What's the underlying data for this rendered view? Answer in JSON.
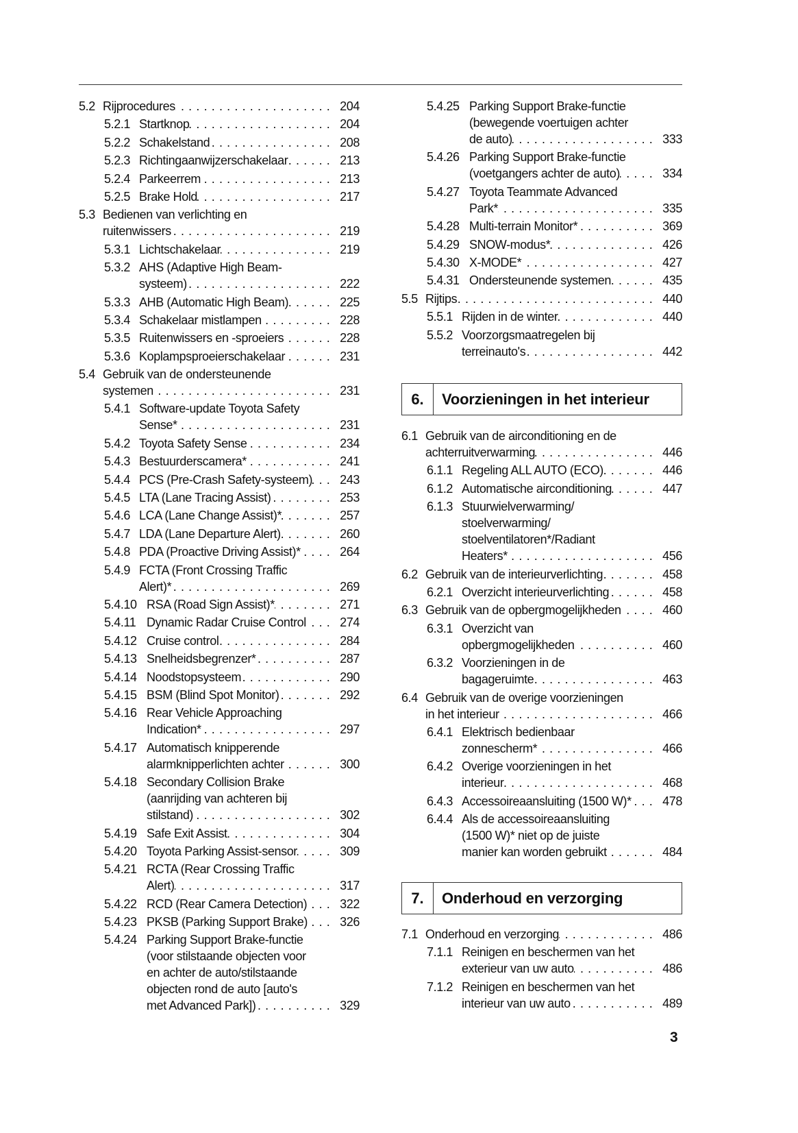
{
  "left_column": [
    {
      "num": "5.2",
      "level": 1,
      "lines": [
        "Rijprocedures"
      ],
      "page": "204"
    },
    {
      "num": "5.2.1",
      "level": 2,
      "lines": [
        "Startknop"
      ],
      "page": "204"
    },
    {
      "num": "5.2.2",
      "level": 2,
      "lines": [
        "Schakelstand"
      ],
      "page": "208"
    },
    {
      "num": "5.2.3",
      "level": 2,
      "lines": [
        "Richtingaanwijzerschakelaar"
      ],
      "page": "213"
    },
    {
      "num": "5.2.4",
      "level": 2,
      "lines": [
        "Parkeerrem"
      ],
      "page": "213"
    },
    {
      "num": "5.2.5",
      "level": 2,
      "lines": [
        "Brake Hold"
      ],
      "page": "217"
    },
    {
      "num": "5.3",
      "level": 1,
      "lines": [
        "Bedienen van verlichting en",
        "ruitenwissers"
      ],
      "page": "219"
    },
    {
      "num": "5.3.1",
      "level": 2,
      "lines": [
        "Lichtschakelaar"
      ],
      "page": "219"
    },
    {
      "num": "5.3.2",
      "level": 2,
      "lines": [
        "AHS (Adaptive High Beam-",
        "systeem)"
      ],
      "page": "222"
    },
    {
      "num": "5.3.3",
      "level": 2,
      "lines": [
        "AHB (Automatic High Beam)"
      ],
      "page": "225"
    },
    {
      "num": "5.3.4",
      "level": 2,
      "lines": [
        "Schakelaar mistlampen"
      ],
      "page": "228"
    },
    {
      "num": "5.3.5",
      "level": 2,
      "lines": [
        "Ruitenwissers en -sproeiers"
      ],
      "page": "228"
    },
    {
      "num": "5.3.6",
      "level": 2,
      "lines": [
        "Koplampsproeierschakelaar"
      ],
      "page": "231"
    },
    {
      "num": "5.4",
      "level": 1,
      "lines": [
        "Gebruik van de ondersteunende",
        "systemen"
      ],
      "page": "231"
    },
    {
      "num": "5.4.1",
      "level": 2,
      "lines": [
        "Software-update Toyota Safety",
        "Sense*"
      ],
      "page": "231"
    },
    {
      "num": "5.4.2",
      "level": 2,
      "lines": [
        "Toyota Safety Sense"
      ],
      "page": "234"
    },
    {
      "num": "5.4.3",
      "level": 2,
      "lines": [
        "Bestuurderscamera*"
      ],
      "page": "241"
    },
    {
      "num": "5.4.4",
      "level": 2,
      "lines": [
        "PCS (Pre-Crash Safety-systeem)"
      ],
      "page": "243"
    },
    {
      "num": "5.4.5",
      "level": 2,
      "lines": [
        "LTA (Lane Tracing Assist)"
      ],
      "page": "253"
    },
    {
      "num": "5.4.6",
      "level": 2,
      "lines": [
        "LCA (Lane Change Assist)*"
      ],
      "page": "257"
    },
    {
      "num": "5.4.7",
      "level": 2,
      "lines": [
        "LDA (Lane Departure Alert)"
      ],
      "page": "260"
    },
    {
      "num": "5.4.8",
      "level": 2,
      "lines": [
        "PDA (Proactive Driving Assist)*"
      ],
      "page": "264"
    },
    {
      "num": "5.4.9",
      "level": 2,
      "lines": [
        "FCTA (Front Crossing Traffic",
        "Alert)*"
      ],
      "page": "269"
    },
    {
      "num": "5.4.10",
      "level": 2,
      "lines": [
        "RSA (Road Sign Assist)*"
      ],
      "page": "271"
    },
    {
      "num": "5.4.11",
      "level": 2,
      "lines": [
        "Dynamic Radar Cruise Control"
      ],
      "page": "274"
    },
    {
      "num": "5.4.12",
      "level": 2,
      "lines": [
        "Cruise control"
      ],
      "page": "284"
    },
    {
      "num": "5.4.13",
      "level": 2,
      "lines": [
        "Snelheidsbegrenzer*"
      ],
      "page": "287"
    },
    {
      "num": "5.4.14",
      "level": 2,
      "lines": [
        "Noodstopsysteem"
      ],
      "page": "290"
    },
    {
      "num": "5.4.15",
      "level": 2,
      "lines": [
        "BSM (Blind Spot Monitor)"
      ],
      "page": "292"
    },
    {
      "num": "5.4.16",
      "level": 2,
      "lines": [
        "Rear Vehicle Approaching",
        "Indication*"
      ],
      "page": "297"
    },
    {
      "num": "5.4.17",
      "level": 2,
      "lines": [
        "Automatisch knipperende",
        "alarmknipperlichten achter"
      ],
      "page": "300"
    },
    {
      "num": "5.4.18",
      "level": 2,
      "lines": [
        "Secondary Collision Brake",
        "(aanrijding van achteren bij",
        "stilstand)"
      ],
      "page": "302"
    },
    {
      "num": "5.4.19",
      "level": 2,
      "lines": [
        "Safe Exit Assist"
      ],
      "page": "304"
    },
    {
      "num": "5.4.20",
      "level": 2,
      "lines": [
        "Toyota Parking Assist-sensor"
      ],
      "page": "309"
    },
    {
      "num": "5.4.21",
      "level": 2,
      "lines": [
        "RCTA (Rear Crossing Traffic",
        "Alert)"
      ],
      "page": "317"
    },
    {
      "num": "5.4.22",
      "level": 2,
      "lines": [
        "RCD (Rear Camera Detection)"
      ],
      "page": "322"
    },
    {
      "num": "5.4.23",
      "level": 2,
      "lines": [
        "PKSB (Parking Support Brake)"
      ],
      "page": "326"
    },
    {
      "num": "5.4.24",
      "level": 2,
      "lines": [
        "Parking Support Brake-functie",
        "(voor stilstaande objecten voor",
        "en achter de auto/stilstaande",
        "objecten rond de auto [auto's",
        "met Advanced Park])"
      ],
      "page": "329"
    }
  ],
  "right_column": [
    {
      "num": "5.4.25",
      "level": 2,
      "lines": [
        "Parking Support Brake-functie",
        "(bewegende voertuigen achter",
        "de auto)"
      ],
      "page": "333"
    },
    {
      "num": "5.4.26",
      "level": 2,
      "lines": [
        "Parking Support Brake-functie",
        "(voetgangers achter de auto)"
      ],
      "page": "334"
    },
    {
      "num": "5.4.27",
      "level": 2,
      "lines": [
        "Toyota Teammate Advanced",
        "Park*"
      ],
      "page": "335"
    },
    {
      "num": "5.4.28",
      "level": 2,
      "lines": [
        "Multi-terrain Monitor*"
      ],
      "page": "369"
    },
    {
      "num": "5.4.29",
      "level": 2,
      "lines": [
        "SNOW-modus*"
      ],
      "page": "426"
    },
    {
      "num": "5.4.30",
      "level": 2,
      "lines": [
        "X-MODE*"
      ],
      "page": "427"
    },
    {
      "num": "5.4.31",
      "level": 2,
      "lines": [
        "Ondersteunende systemen"
      ],
      "page": "435"
    },
    {
      "num": "5.5",
      "level": 1,
      "lines": [
        "Rijtips"
      ],
      "page": "440"
    },
    {
      "num": "5.5.1",
      "level": 2,
      "lines": [
        "Rijden in de winter"
      ],
      "page": "440"
    },
    {
      "num": "5.5.2",
      "level": 2,
      "lines": [
        "Voorzorgsmaatregelen bij",
        "terreinauto's"
      ],
      "page": "442"
    }
  ],
  "chapter6": {
    "number": "6.",
    "title": "Voorzieningen in het interieur",
    "entries": [
      {
        "num": "6.1",
        "level": 1,
        "lines": [
          "Gebruik van de airconditioning en de",
          "achterruitverwarming"
        ],
        "page": "446"
      },
      {
        "num": "6.1.1",
        "level": 2,
        "lines": [
          "Regeling ALL AUTO (ECO)"
        ],
        "page": "446"
      },
      {
        "num": "6.1.2",
        "level": 2,
        "lines": [
          "Automatische airconditioning"
        ],
        "page": "447"
      },
      {
        "num": "6.1.3",
        "level": 2,
        "lines": [
          "Stuurwielverwarming/",
          "stoelverwarming/",
          "stoelventilatoren*/Radiant",
          "Heaters*"
        ],
        "page": "456"
      },
      {
        "num": "6.2",
        "level": 1,
        "lines": [
          "Gebruik van de interieurverlichting"
        ],
        "page": "458"
      },
      {
        "num": "6.2.1",
        "level": 2,
        "lines": [
          "Overzicht interieurverlichting"
        ],
        "page": "458"
      },
      {
        "num": "6.3",
        "level": 1,
        "lines": [
          "Gebruik van de opbergmogelijkheden"
        ],
        "page": "460"
      },
      {
        "num": "6.3.1",
        "level": 2,
        "lines": [
          "Overzicht van",
          "opbergmogelijkheden"
        ],
        "page": "460"
      },
      {
        "num": "6.3.2",
        "level": 2,
        "lines": [
          "Voorzieningen in de",
          "bagageruimte"
        ],
        "page": "463"
      },
      {
        "num": "6.4",
        "level": 1,
        "lines": [
          "Gebruik van de overige voorzieningen",
          "in het interieur"
        ],
        "page": "466"
      },
      {
        "num": "6.4.1",
        "level": 2,
        "lines": [
          "Elektrisch bedienbaar",
          "zonnescherm*"
        ],
        "page": "466"
      },
      {
        "num": "6.4.2",
        "level": 2,
        "lines": [
          "Overige voorzieningen in het",
          "interieur"
        ],
        "page": "468"
      },
      {
        "num": "6.4.3",
        "level": 2,
        "lines": [
          "Accessoireaansluiting (1500 W)*"
        ],
        "page": "478"
      },
      {
        "num": "6.4.4",
        "level": 2,
        "lines": [
          "Als de accessoireaansluiting",
          "(1500 W)* niet op de juiste",
          "manier kan worden gebruikt"
        ],
        "page": "484"
      }
    ]
  },
  "chapter7": {
    "number": "7.",
    "title": "Onderhoud en verzorging",
    "entries": [
      {
        "num": "7.1",
        "level": 1,
        "lines": [
          "Onderhoud en verzorging"
        ],
        "page": "486"
      },
      {
        "num": "7.1.1",
        "level": 2,
        "lines": [
          "Reinigen en beschermen van het",
          "exterieur van uw auto"
        ],
        "page": "486"
      },
      {
        "num": "7.1.2",
        "level": 2,
        "lines": [
          "Reinigen en beschermen van het",
          "interieur van uw auto"
        ],
        "page": "489"
      }
    ]
  },
  "page_number": "3"
}
